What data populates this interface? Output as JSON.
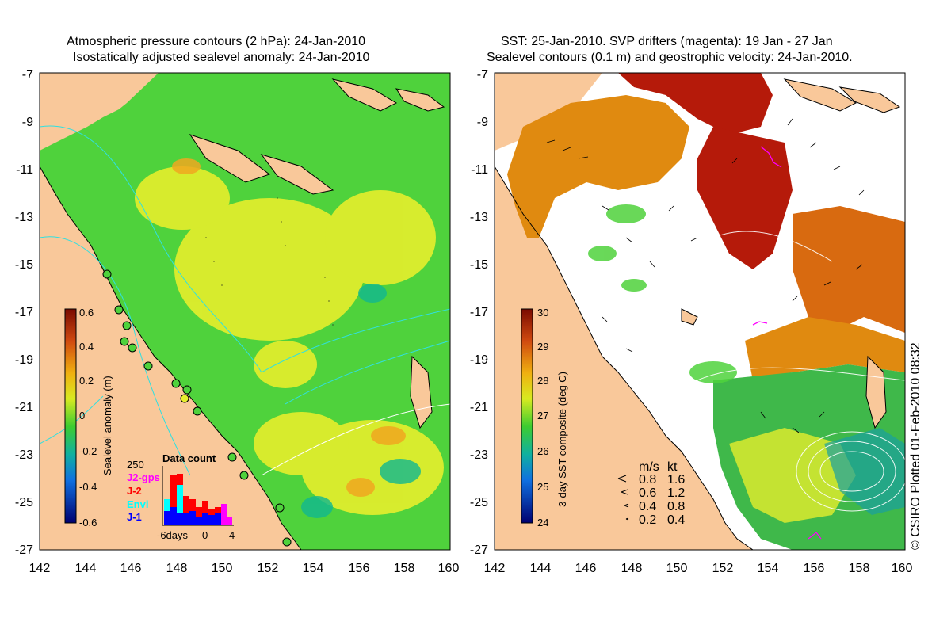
{
  "left_panel": {
    "title_line1": "Atmospheric pressure contours (2 hPa): 24-Jan-2010",
    "title_line2": "Isostatically adjusted sealevel anomaly: 24-Jan-2010",
    "colorbar_label": "Sealevel anomaly (m)",
    "colorbar_ticks": [
      "0.6",
      "0.4",
      "0.2",
      "0",
      "-0.2",
      "-0.4",
      "-0.6"
    ],
    "inset": {
      "title": "Data count",
      "ymax_label": "250",
      "legend": [
        {
          "label": "J2-gps",
          "color": "#ff00ff"
        },
        {
          "label": "J-2",
          "color": "#ff0000"
        },
        {
          "label": "Envi",
          "color": "#00ffff"
        },
        {
          "label": "J-1",
          "color": "#0000ff"
        }
      ],
      "x_labels": [
        "-6days",
        "0",
        "4"
      ]
    }
  },
  "right_panel": {
    "title_line1": "SST: 25-Jan-2010. SVP drifters (magenta): 19 Jan - 27 Jan",
    "title_line2": "Sealevel contours (0.1 m) and geostrophic velocity: 24-Jan-2010.",
    "colorbar_label": "3-day SST composite (deg C)",
    "colorbar_ticks": [
      "30",
      "29",
      "28",
      "27",
      "26",
      "25",
      "24"
    ],
    "velocity_key": {
      "header_ms": "m/s",
      "header_kt": "kt",
      "rows": [
        {
          "ms": "0.8",
          "kt": "1.6"
        },
        {
          "ms": "0.6",
          "kt": "1.2"
        },
        {
          "ms": "0.4",
          "kt": "0.8"
        },
        {
          "ms": "0.2",
          "kt": "0.4"
        }
      ]
    }
  },
  "axes": {
    "lat_labels": [
      "-7",
      "-9",
      "-11",
      "-13",
      "-15",
      "-17",
      "-19",
      "-21",
      "-23",
      "-25",
      "-27"
    ],
    "lon_labels": [
      "142",
      "144",
      "146",
      "148",
      "150",
      "152",
      "154",
      "156",
      "158",
      "160"
    ]
  },
  "credit": "© CSIRO Plotted 01-Feb-2010 08:32",
  "colors": {
    "land": "#f9c89a",
    "ocean_green": "#4fd23c",
    "ocean_yellow": "#e6ee2c",
    "sst_red": "#b51a0a",
    "sst_orange": "#e08a10"
  }
}
